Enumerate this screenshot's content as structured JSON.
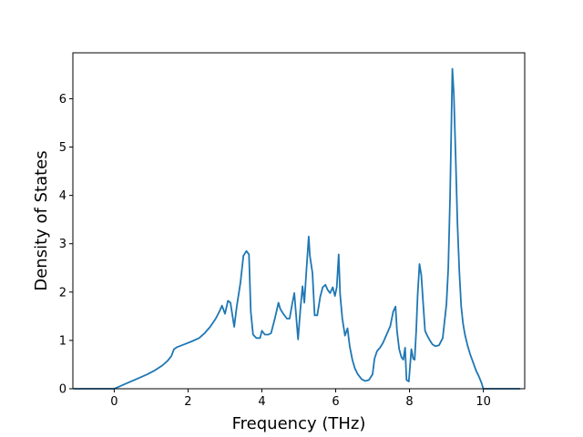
{
  "chart_data": {
    "type": "line",
    "title": "",
    "xlabel": "Frequency (THz)",
    "ylabel": "Density of States",
    "xlim": [
      -1.12,
      11.12
    ],
    "ylim": [
      0,
      6.95
    ],
    "xticks": [
      0,
      2,
      4,
      6,
      8,
      10
    ],
    "yticks": [
      0,
      1,
      2,
      3,
      4,
      5,
      6
    ],
    "grid": false,
    "legend": "none",
    "line_color": "#1f77b4",
    "series": [
      {
        "x": [
          -1.1,
          -0.5,
          0.0,
          0.3,
          0.6,
          0.9,
          1.1,
          1.3,
          1.45,
          1.55,
          1.62,
          1.7,
          1.9,
          2.1,
          2.3,
          2.45,
          2.6,
          2.75,
          2.85,
          2.92,
          3.0,
          3.08,
          3.15,
          3.25,
          3.32,
          3.42,
          3.5,
          3.58,
          3.65,
          3.7,
          3.76,
          3.85,
          3.95,
          4.0,
          4.08,
          4.18,
          4.25,
          4.35,
          4.45,
          4.5,
          4.58,
          4.68,
          4.75,
          4.82,
          4.88,
          4.98,
          5.05,
          5.1,
          5.15,
          5.22,
          5.27,
          5.3,
          5.37,
          5.43,
          5.5,
          5.58,
          5.65,
          5.72,
          5.78,
          5.85,
          5.92,
          5.98,
          6.03,
          6.08,
          6.12,
          6.18,
          6.25,
          6.32,
          6.38,
          6.45,
          6.52,
          6.6,
          6.7,
          6.8,
          6.9,
          7.0,
          7.05,
          7.12,
          7.2,
          7.28,
          7.38,
          7.48,
          7.56,
          7.62,
          7.66,
          7.72,
          7.78,
          7.83,
          7.88,
          7.92,
          7.98,
          8.05,
          8.1,
          8.14,
          8.18,
          8.22,
          8.27,
          8.32,
          8.37,
          8.42,
          8.48,
          8.55,
          8.62,
          8.7,
          8.8,
          8.9,
          9.0,
          9.05,
          9.1,
          9.16,
          9.2,
          9.25,
          9.3,
          9.35,
          9.4,
          9.45,
          9.5,
          9.57,
          9.64,
          9.72,
          9.8,
          9.88,
          9.95,
          10.0,
          10.3,
          11.0
        ],
        "values": [
          0.0,
          0.0,
          0.0,
          0.1,
          0.2,
          0.3,
          0.38,
          0.48,
          0.58,
          0.68,
          0.82,
          0.86,
          0.92,
          0.98,
          1.05,
          1.15,
          1.28,
          1.45,
          1.6,
          1.72,
          1.55,
          1.82,
          1.78,
          1.28,
          1.7,
          2.2,
          2.75,
          2.85,
          2.78,
          1.6,
          1.12,
          1.05,
          1.05,
          1.2,
          1.12,
          1.12,
          1.15,
          1.45,
          1.78,
          1.65,
          1.55,
          1.45,
          1.45,
          1.75,
          1.98,
          1.02,
          1.7,
          2.12,
          1.78,
          2.6,
          3.15,
          2.75,
          2.4,
          1.52,
          1.52,
          1.9,
          2.1,
          2.15,
          2.05,
          1.98,
          2.1,
          1.92,
          2.1,
          2.78,
          1.95,
          1.45,
          1.1,
          1.25,
          0.88,
          0.6,
          0.42,
          0.3,
          0.2,
          0.16,
          0.18,
          0.3,
          0.62,
          0.78,
          0.85,
          0.95,
          1.12,
          1.3,
          1.6,
          1.7,
          1.2,
          0.82,
          0.65,
          0.6,
          0.85,
          0.18,
          0.15,
          0.82,
          0.62,
          0.6,
          1.2,
          1.95,
          2.58,
          2.35,
          1.75,
          1.2,
          1.1,
          1.0,
          0.92,
          0.88,
          0.9,
          1.05,
          1.75,
          2.5,
          4.0,
          6.62,
          6.1,
          4.8,
          3.4,
          2.4,
          1.7,
          1.35,
          1.12,
          0.9,
          0.72,
          0.55,
          0.38,
          0.25,
          0.12,
          0.0,
          0.0,
          0.0
        ]
      }
    ]
  }
}
